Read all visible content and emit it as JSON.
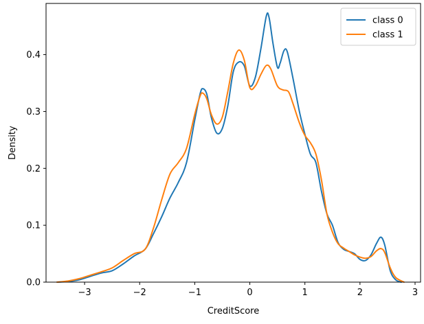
{
  "chart_data": {
    "type": "line",
    "title": "",
    "xlabel": "CreditScore",
    "ylabel": "Density",
    "xlim": [
      -3.7,
      3.1
    ],
    "ylim": [
      0.0,
      0.49
    ],
    "xticks": [
      -3,
      -2,
      -1,
      0,
      1,
      2,
      3
    ],
    "xtick_labels": [
      "−3",
      "−2",
      "−1",
      "0",
      "1",
      "2",
      "3"
    ],
    "yticks": [
      0.0,
      0.1,
      0.2,
      0.3,
      0.4
    ],
    "ytick_labels": [
      "0.0",
      "0.1",
      "0.2",
      "0.3",
      "0.4"
    ],
    "grid": false,
    "legend_position": "top-right",
    "series": [
      {
        "name": "class 0",
        "color": "#1f77b4",
        "points": [
          [
            -3.5,
            0.0
          ],
          [
            -3.3,
            0.001
          ],
          [
            -3.1,
            0.004
          ],
          [
            -2.9,
            0.01
          ],
          [
            -2.7,
            0.016
          ],
          [
            -2.5,
            0.02
          ],
          [
            -2.3,
            0.032
          ],
          [
            -2.1,
            0.046
          ],
          [
            -1.9,
            0.058
          ],
          [
            -1.75,
            0.085
          ],
          [
            -1.6,
            0.115
          ],
          [
            -1.45,
            0.148
          ],
          [
            -1.3,
            0.175
          ],
          [
            -1.15,
            0.21
          ],
          [
            -1.0,
            0.285
          ],
          [
            -0.9,
            0.332
          ],
          [
            -0.85,
            0.34
          ],
          [
            -0.78,
            0.33
          ],
          [
            -0.7,
            0.29
          ],
          [
            -0.6,
            0.262
          ],
          [
            -0.5,
            0.27
          ],
          [
            -0.4,
            0.31
          ],
          [
            -0.3,
            0.37
          ],
          [
            -0.2,
            0.387
          ],
          [
            -0.1,
            0.38
          ],
          [
            0.0,
            0.345
          ],
          [
            0.1,
            0.36
          ],
          [
            0.2,
            0.41
          ],
          [
            0.3,
            0.468
          ],
          [
            0.35,
            0.465
          ],
          [
            0.42,
            0.42
          ],
          [
            0.5,
            0.378
          ],
          [
            0.55,
            0.385
          ],
          [
            0.62,
            0.407
          ],
          [
            0.68,
            0.405
          ],
          [
            0.78,
            0.36
          ],
          [
            0.9,
            0.3
          ],
          [
            1.0,
            0.26
          ],
          [
            1.1,
            0.225
          ],
          [
            1.2,
            0.21
          ],
          [
            1.3,
            0.16
          ],
          [
            1.4,
            0.12
          ],
          [
            1.5,
            0.1
          ],
          [
            1.6,
            0.07
          ],
          [
            1.7,
            0.058
          ],
          [
            1.8,
            0.054
          ],
          [
            1.9,
            0.05
          ],
          [
            2.0,
            0.04
          ],
          [
            2.1,
            0.038
          ],
          [
            2.2,
            0.048
          ],
          [
            2.3,
            0.068
          ],
          [
            2.38,
            0.079
          ],
          [
            2.45,
            0.065
          ],
          [
            2.55,
            0.02
          ],
          [
            2.65,
            0.004
          ],
          [
            2.75,
            0.0
          ]
        ]
      },
      {
        "name": "class 1",
        "color": "#ff7f0e",
        "points": [
          [
            -3.5,
            0.0
          ],
          [
            -3.3,
            0.002
          ],
          [
            -3.1,
            0.006
          ],
          [
            -2.9,
            0.012
          ],
          [
            -2.7,
            0.018
          ],
          [
            -2.5,
            0.025
          ],
          [
            -2.3,
            0.038
          ],
          [
            -2.1,
            0.05
          ],
          [
            -1.9,
            0.058
          ],
          [
            -1.75,
            0.095
          ],
          [
            -1.6,
            0.145
          ],
          [
            -1.45,
            0.19
          ],
          [
            -1.3,
            0.21
          ],
          [
            -1.15,
            0.235
          ],
          [
            -1.0,
            0.295
          ],
          [
            -0.9,
            0.328
          ],
          [
            -0.85,
            0.332
          ],
          [
            -0.78,
            0.322
          ],
          [
            -0.7,
            0.295
          ],
          [
            -0.6,
            0.278
          ],
          [
            -0.5,
            0.29
          ],
          [
            -0.4,
            0.335
          ],
          [
            -0.3,
            0.385
          ],
          [
            -0.2,
            0.408
          ],
          [
            -0.1,
            0.39
          ],
          [
            0.0,
            0.342
          ],
          [
            0.1,
            0.345
          ],
          [
            0.2,
            0.365
          ],
          [
            0.3,
            0.381
          ],
          [
            0.38,
            0.375
          ],
          [
            0.5,
            0.345
          ],
          [
            0.6,
            0.338
          ],
          [
            0.7,
            0.335
          ],
          [
            0.78,
            0.315
          ],
          [
            0.9,
            0.28
          ],
          [
            1.0,
            0.258
          ],
          [
            1.1,
            0.245
          ],
          [
            1.2,
            0.225
          ],
          [
            1.3,
            0.18
          ],
          [
            1.4,
            0.12
          ],
          [
            1.5,
            0.088
          ],
          [
            1.6,
            0.068
          ],
          [
            1.7,
            0.06
          ],
          [
            1.8,
            0.054
          ],
          [
            1.9,
            0.048
          ],
          [
            2.0,
            0.044
          ],
          [
            2.1,
            0.042
          ],
          [
            2.2,
            0.045
          ],
          [
            2.3,
            0.055
          ],
          [
            2.38,
            0.059
          ],
          [
            2.45,
            0.052
          ],
          [
            2.55,
            0.025
          ],
          [
            2.65,
            0.008
          ],
          [
            2.8,
            0.0
          ]
        ]
      }
    ]
  }
}
